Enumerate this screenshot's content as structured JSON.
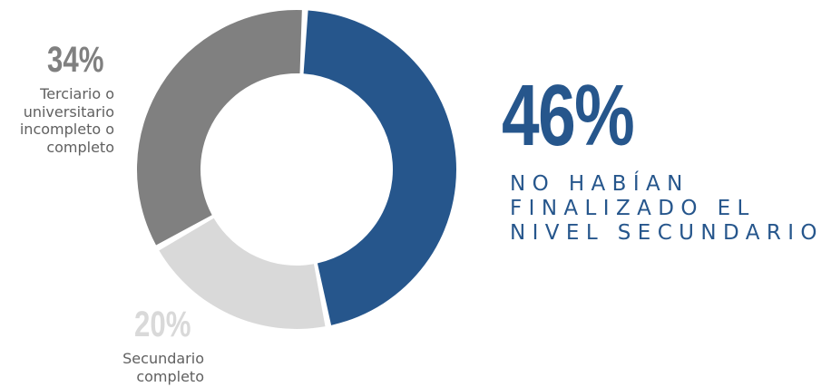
{
  "chart_data": {
    "type": "donut",
    "slices": [
      {
        "label": "No habían finalizado el nivel secundario",
        "value": 46,
        "color": "#26568c"
      },
      {
        "label": "Secundario completo",
        "value": 20,
        "color": "#d9d9d9"
      },
      {
        "label": "Terciario o universitario incompleto o completo",
        "value": 34,
        "color": "#808080"
      }
    ]
  },
  "callouts": {
    "main": {
      "value_text": "46%",
      "lines": [
        "NO HABÍAN",
        "FINALIZADO EL",
        "NIVEL SECUNDARIO"
      ],
      "color": "#26568c"
    },
    "tertiary": {
      "value_text": "34%",
      "lines": [
        "Terciario o",
        "universitario",
        "incompleto o",
        "completo"
      ],
      "color": "#808080"
    },
    "secondary": {
      "value_text": "20%",
      "lines": [
        "Secundario",
        "completo"
      ],
      "color": "#d9d9d9"
    }
  }
}
